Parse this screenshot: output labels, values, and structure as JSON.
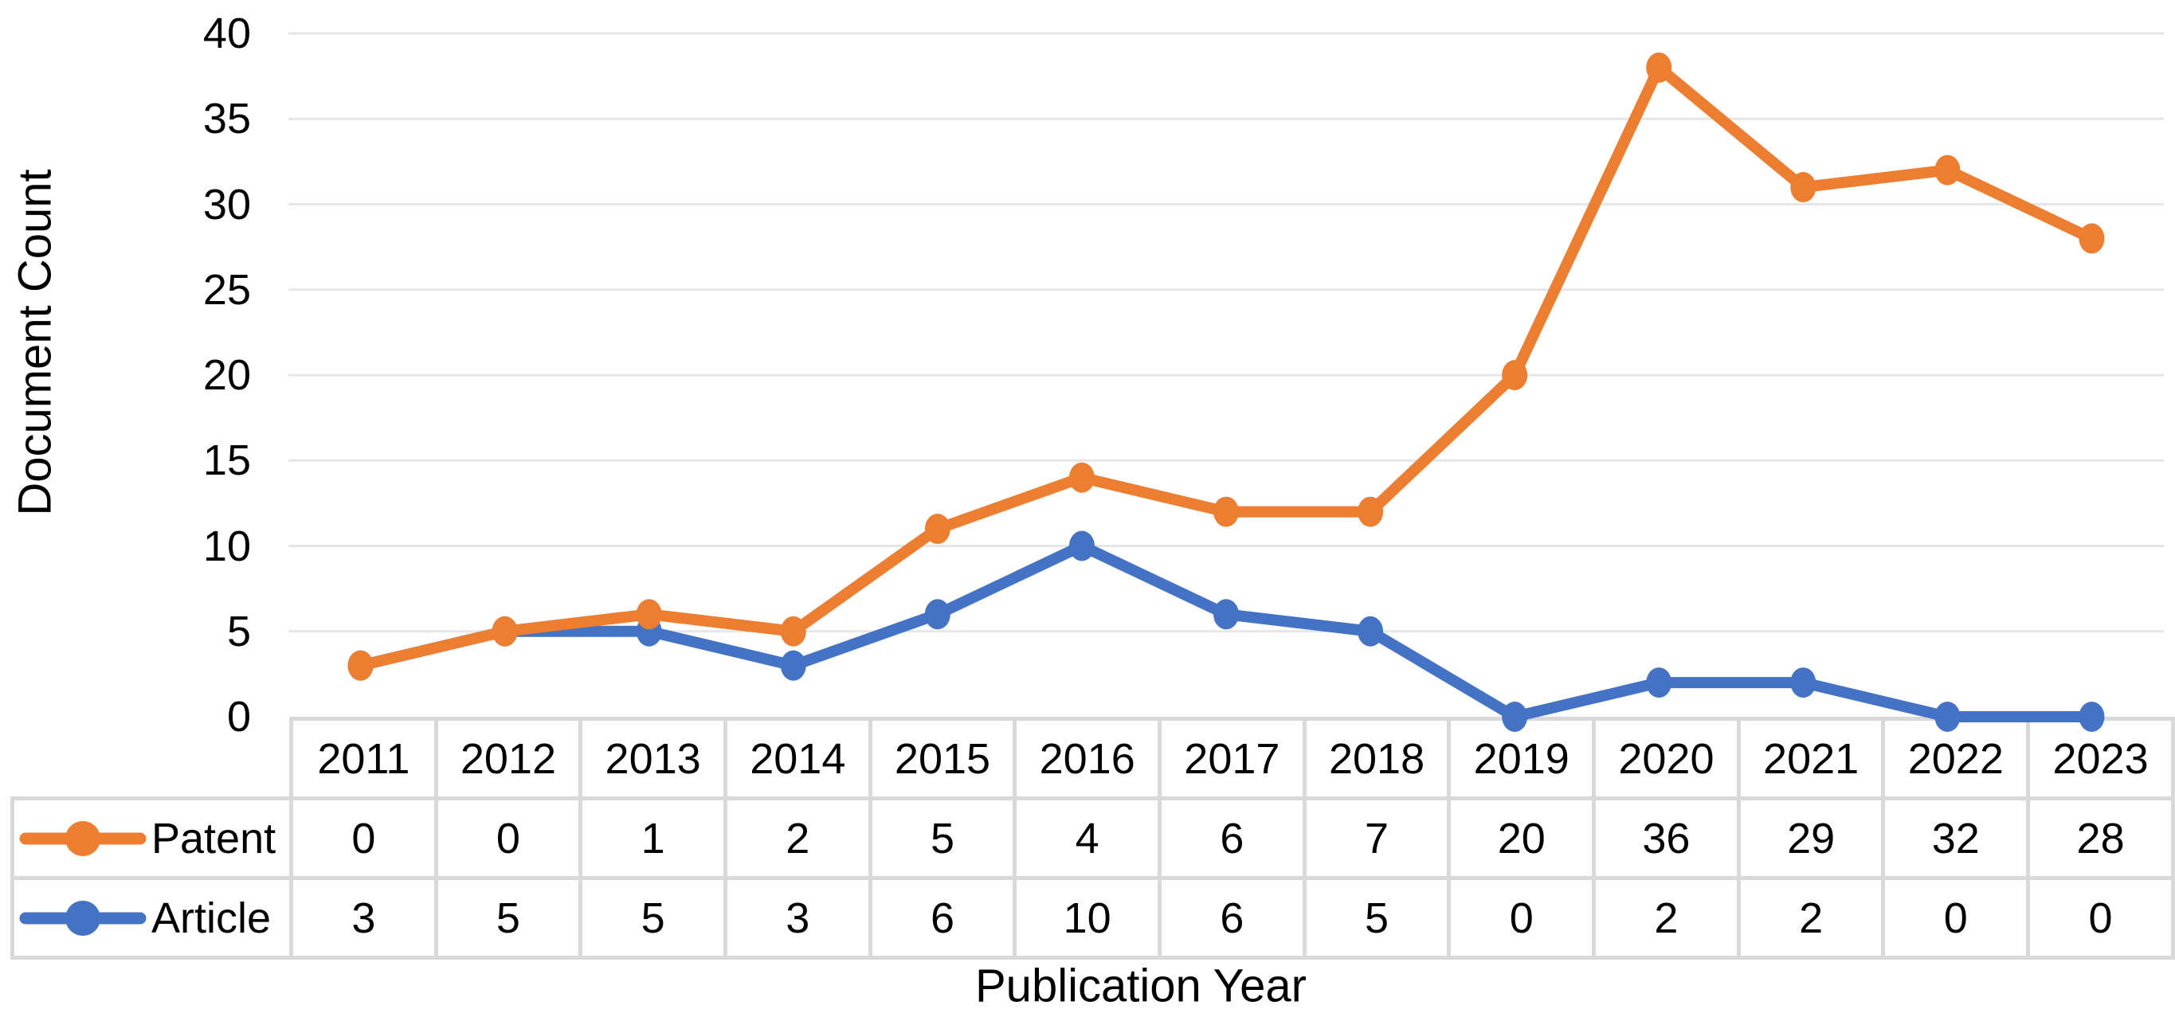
{
  "chart_data": {
    "type": "line",
    "stacked": true,
    "title": "",
    "xlabel": "Publication Year",
    "ylabel": "Document Count",
    "categories": [
      "2011",
      "2012",
      "2013",
      "2014",
      "2015",
      "2016",
      "2017",
      "2018",
      "2019",
      "2020",
      "2021",
      "2022",
      "2023"
    ],
    "series": [
      {
        "name": "Patent",
        "color": "#ED7D31",
        "values": [
          0,
          0,
          1,
          2,
          5,
          4,
          6,
          7,
          20,
          36,
          29,
          32,
          28
        ],
        "plotted_cumulative": [
          3,
          5,
          6,
          5,
          11,
          14,
          12,
          12,
          20,
          38,
          31,
          32,
          28
        ]
      },
      {
        "name": "Article",
        "color": "#4472C4",
        "values": [
          3,
          5,
          5,
          3,
          6,
          10,
          6,
          5,
          0,
          2,
          2,
          0,
          0
        ],
        "plotted_cumulative": [
          3,
          5,
          5,
          3,
          6,
          10,
          6,
          5,
          0,
          2,
          2,
          0,
          0
        ]
      }
    ],
    "stack_order": [
      "Article",
      "Patent"
    ],
    "ylim": [
      0,
      40
    ],
    "ytick_step": 5,
    "ytick_labels": [
      "0",
      "5",
      "10",
      "15",
      "20",
      "25",
      "30",
      "35",
      "40"
    ],
    "grid": true,
    "grid_color": "#E6E6E6",
    "table_border_color": "#D9D9D9",
    "legend_position": "table-left"
  }
}
